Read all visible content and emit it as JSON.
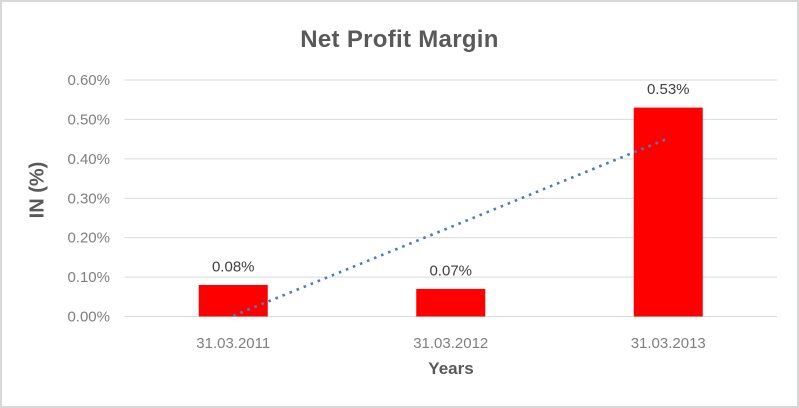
{
  "chart_data": {
    "type": "bar",
    "title": "Net Profit Margin",
    "xlabel": "Years",
    "ylabel": "IN (%)",
    "categories": [
      "31.03.2011",
      "31.03.2012",
      "31.03.2013"
    ],
    "series": [
      {
        "name": "Net Profit Margin",
        "values": [
          0.08,
          0.07,
          0.53
        ],
        "data_labels": [
          "0.08%",
          "0.07%",
          "0.53%"
        ]
      }
    ],
    "y_axis": {
      "tick_labels": [
        "0.00%",
        "0.10%",
        "0.20%",
        "0.30%",
        "0.40%",
        "0.50%",
        "0.60%"
      ],
      "tick_values": [
        0,
        0.1,
        0.2,
        0.3,
        0.4,
        0.5,
        0.6
      ]
    },
    "ylim": [
      0,
      0.6
    ],
    "grid": true,
    "legend_position": "none",
    "trendline": {
      "type": "linear",
      "line_style": "dotted",
      "start_value": 0.002,
      "end_value": 0.452
    },
    "colors": {
      "bar": "#ff0000",
      "trendline": "#4a7ebb",
      "title_text": "#595959",
      "axis_title_text": "#595959",
      "tick_text": "#7f7f7f",
      "category_text": "#7f7f7f",
      "data_label_text": "#404040",
      "gridline": "#d9d9d9",
      "axis_line": "#d9d9d9",
      "frame_border": "#d8d8d8",
      "background": "#ffffff"
    }
  }
}
